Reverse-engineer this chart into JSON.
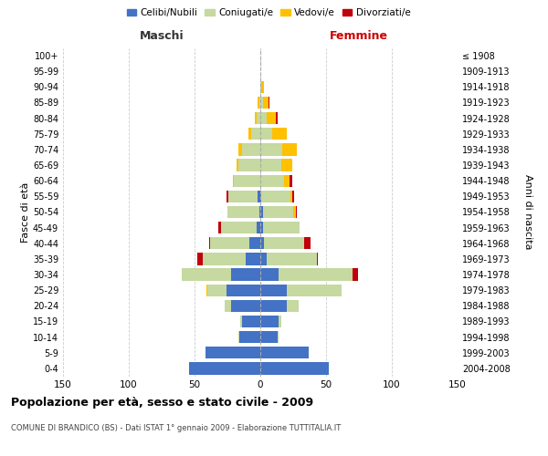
{
  "age_groups": [
    "0-4",
    "5-9",
    "10-14",
    "15-19",
    "20-24",
    "25-29",
    "30-34",
    "35-39",
    "40-44",
    "45-49",
    "50-54",
    "55-59",
    "60-64",
    "65-69",
    "70-74",
    "75-79",
    "80-84",
    "85-89",
    "90-94",
    "95-99",
    "100+"
  ],
  "birth_years": [
    "2004-2008",
    "1999-2003",
    "1994-1998",
    "1989-1993",
    "1984-1988",
    "1979-1983",
    "1974-1978",
    "1969-1973",
    "1964-1968",
    "1959-1963",
    "1954-1958",
    "1949-1953",
    "1944-1948",
    "1939-1943",
    "1934-1938",
    "1929-1933",
    "1924-1928",
    "1919-1923",
    "1914-1918",
    "1909-1913",
    "≤ 1908"
  ],
  "males": {
    "celibi": [
      54,
      42,
      16,
      14,
      22,
      26,
      22,
      11,
      8,
      3,
      1,
      2,
      0,
      0,
      0,
      0,
      0,
      0,
      0,
      0,
      0
    ],
    "coniugati": [
      0,
      0,
      1,
      1,
      5,
      14,
      38,
      33,
      30,
      27,
      24,
      22,
      20,
      17,
      14,
      7,
      3,
      1,
      0,
      0,
      0
    ],
    "vedovi": [
      0,
      0,
      0,
      0,
      0,
      1,
      0,
      0,
      0,
      0,
      0,
      0,
      1,
      1,
      3,
      2,
      1,
      1,
      0,
      0,
      0
    ],
    "divorziati": [
      0,
      0,
      0,
      0,
      0,
      0,
      0,
      4,
      1,
      2,
      0,
      2,
      0,
      0,
      0,
      0,
      0,
      0,
      0,
      0,
      0
    ]
  },
  "females": {
    "nubili": [
      52,
      37,
      13,
      14,
      20,
      20,
      14,
      5,
      3,
      2,
      2,
      1,
      0,
      0,
      0,
      0,
      0,
      0,
      0,
      0,
      0
    ],
    "coniugate": [
      0,
      0,
      1,
      2,
      9,
      42,
      56,
      38,
      30,
      28,
      23,
      22,
      18,
      16,
      17,
      9,
      5,
      2,
      1,
      0,
      0
    ],
    "vedove": [
      0,
      0,
      0,
      0,
      0,
      0,
      0,
      0,
      0,
      0,
      2,
      1,
      4,
      8,
      11,
      11,
      7,
      4,
      2,
      0,
      0
    ],
    "divorziate": [
      0,
      0,
      0,
      0,
      0,
      0,
      4,
      1,
      5,
      0,
      1,
      2,
      2,
      0,
      0,
      0,
      1,
      1,
      0,
      0,
      0
    ]
  },
  "color_celibi": "#4472c4",
  "color_coniugati": "#c5d9a0",
  "color_vedovi": "#ffc000",
  "color_divorziati": "#c0000b",
  "xlim": 150,
  "title": "Popolazione per età, sesso e stato civile - 2009",
  "subtitle": "COMUNE DI BRANDICO (BS) - Dati ISTAT 1° gennaio 2009 - Elaborazione TUTTITALIA.IT",
  "ylabel_left": "Fasce di età",
  "ylabel_right": "Anni di nascita",
  "xlabel_left": "Maschi",
  "xlabel_right": "Femmine",
  "bg_color": "#ffffff",
  "grid_color": "#cccccc"
}
